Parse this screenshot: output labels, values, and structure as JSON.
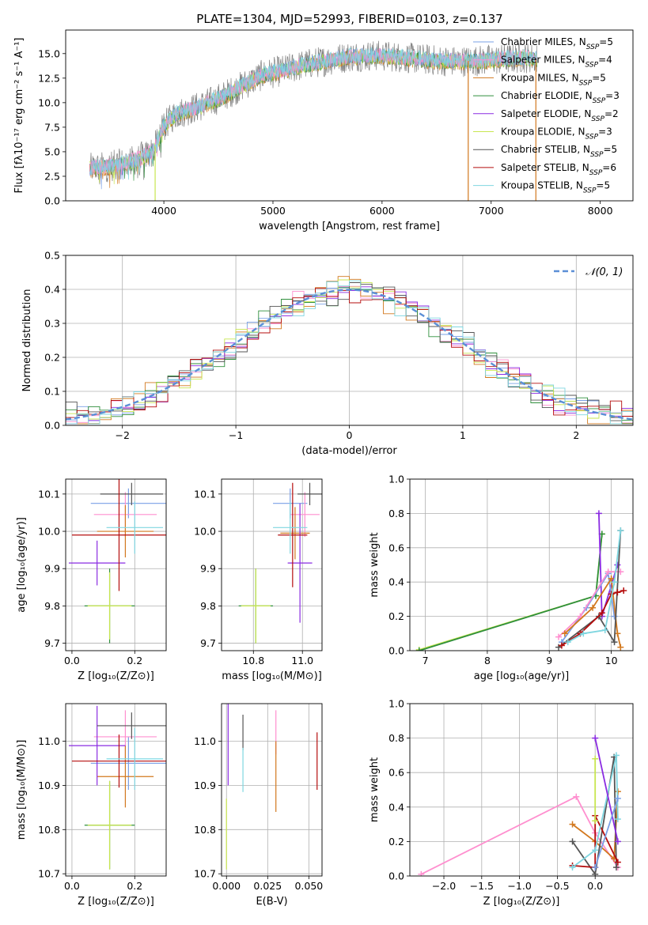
{
  "figure": {
    "title": "PLATE=1304, MJD=52993, FIBERID=0103, z=0.137"
  },
  "colors": {
    "chabrier_miles": "#7aa0e6",
    "salpeter_miles": "#ff8fcf",
    "kroupa_miles": "#d2781e",
    "chabrier_elodie": "#2f8f3c",
    "salpeter_elodie": "#8a2be2",
    "kroupa_elodie": "#c8e650",
    "chabrier_stelib": "#555555",
    "salpeter_stelib": "#b50d0d",
    "kroupa_stelib": "#7fd6e0",
    "gaussian": "#5b8fd6"
  },
  "chart_data": [
    {
      "id": "spectrum",
      "type": "line",
      "title": "PLATE=1304, MJD=52993, FIBERID=0103, z=0.137",
      "xlabel": "wavelength [Angstrom, rest frame]",
      "ylabel": "Flux [fλ10⁻¹⁷ erg cm⁻² s⁻¹ A⁻¹]",
      "xlim": [
        3100,
        8300
      ],
      "ylim": [
        0,
        17.4
      ],
      "xticks": [
        4000,
        5000,
        6000,
        7000,
        8000
      ],
      "xtick_labels": [
        "4000",
        "5000",
        "6000",
        "7000",
        "8000"
      ],
      "yticks": [
        0,
        2.5,
        5,
        7.5,
        10,
        12.5,
        15
      ],
      "ytick_labels": [
        "0.0",
        "2.5",
        "5.0",
        "7.5",
        "10.0",
        "12.5",
        "15.0"
      ],
      "legend_placement": "upper-right",
      "continuum": {
        "x": [
          3320,
          3500,
          3700,
          3900,
          4000,
          4100,
          4300,
          4500,
          4700,
          4900,
          5100,
          5300,
          5500,
          5700,
          5900,
          6100,
          6300,
          6500,
          6700,
          6900,
          7100,
          7300,
          7420
        ],
        "y": [
          3.3,
          3.5,
          4.0,
          5.0,
          7.6,
          8.8,
          9.5,
          10.4,
          11.6,
          12.8,
          13.3,
          13.9,
          14.3,
          14.7,
          14.8,
          14.7,
          14.5,
          14.3,
          14.2,
          14.3,
          14.4,
          14.6,
          14.5
        ]
      },
      "series": [
        {
          "name": "Chabrier MILES, N",
          "sub": "SSP",
          "suffix": "=5",
          "color_key": "chabrier_miles"
        },
        {
          "name": "Salpeter MILES, N",
          "sub": "SSP",
          "suffix": "=4",
          "color_key": "salpeter_miles"
        },
        {
          "name": "Kroupa MILES, N",
          "sub": "SSP",
          "suffix": "=5",
          "color_key": "kroupa_miles"
        },
        {
          "name": "Chabrier ELODIE, N",
          "sub": "SSP",
          "suffix": "=3",
          "color_key": "chabrier_elodie"
        },
        {
          "name": "Salpeter ELODIE, N",
          "sub": "SSP",
          "suffix": "=2",
          "color_key": "salpeter_elodie"
        },
        {
          "name": "Kroupa ELODIE, N",
          "sub": "SSP",
          "suffix": "=3",
          "color_key": "kroupa_elodie"
        },
        {
          "name": "Chabrier STELIB, N",
          "sub": "SSP",
          "suffix": "=5",
          "color_key": "chabrier_stelib"
        },
        {
          "name": "Salpeter STELIB, N",
          "sub": "SSP",
          "suffix": "=6",
          "color_key": "salpeter_stelib"
        },
        {
          "name": "Kroupa STELIB, N",
          "sub": "SSP",
          "suffix": "=5",
          "color_key": "kroupa_stelib"
        }
      ],
      "dropouts": [
        {
          "x": 3920,
          "y": 0,
          "color_key": "kroupa_elodie"
        },
        {
          "x": 6790,
          "y": 0,
          "color_key": "kroupa_miles"
        },
        {
          "x": 7410,
          "y": 0,
          "color_key": "kroupa_miles"
        }
      ]
    },
    {
      "id": "residuals",
      "type": "step",
      "xlabel": "(data-model)/error",
      "ylabel": "Normed distribution",
      "xlim": [
        -2.5,
        2.5
      ],
      "ylim": [
        0,
        0.5
      ],
      "xticks": [
        -2,
        -1,
        0,
        1,
        2
      ],
      "xtick_labels": [
        "−2",
        "−1",
        "0",
        "1",
        "2"
      ],
      "yticks": [
        0,
        0.1,
        0.2,
        0.3,
        0.4,
        0.5
      ],
      "ytick_labels": [
        "0.0",
        "0.1",
        "0.2",
        "0.3",
        "0.4",
        "0.5"
      ],
      "grid": true,
      "legend_placement": "upper-right",
      "legend_label": "𝒩(0, 1)",
      "bin_edges": [
        -2.5,
        -2.4,
        -2.3,
        -2.2,
        -2.1,
        -2.0,
        -1.9,
        -1.8,
        -1.7,
        -1.6,
        -1.5,
        -1.4,
        -1.3,
        -1.2,
        -1.1,
        -1.0,
        -0.9,
        -0.8,
        -0.7,
        -0.6,
        -0.5,
        -0.4,
        -0.3,
        -0.2,
        -0.1,
        0.0,
        0.1,
        0.2,
        0.3,
        0.4,
        0.5,
        0.6,
        0.7,
        0.8,
        0.9,
        1.0,
        1.1,
        1.2,
        1.3,
        1.4,
        1.5,
        1.6,
        1.7,
        1.8,
        1.9,
        2.0,
        2.1,
        2.2,
        2.3,
        2.4,
        2.5
      ],
      "gaussian_pdf": true,
      "hist_offsets": [
        0.018,
        -0.012,
        0.025,
        -0.02,
        0.01,
        -0.005,
        0.03,
        -0.025,
        0.015
      ]
    },
    {
      "id": "age_vs_z",
      "type": "errorbar",
      "xlabel": "Z [log₁₀(Z/Z⊙)]",
      "ylabel": "age  [log₁₀(age/yr)]",
      "xlim": [
        -0.02,
        0.3
      ],
      "ylim": [
        9.68,
        10.14
      ],
      "xticks": [
        0.0,
        0.2
      ],
      "xtick_labels": [
        "0.0",
        "0.2"
      ],
      "yticks": [
        9.7,
        9.8,
        9.9,
        10.0,
        10.1
      ],
      "ytick_labels": [
        "9.7",
        "9.8",
        "9.9",
        "10.0",
        "10.1"
      ],
      "grid": true,
      "points": [
        {
          "x": 0.18,
          "y": 10.075,
          "xerr": 0.12,
          "yerr": 0.04,
          "color_key": "chabrier_miles"
        },
        {
          "x": 0.17,
          "y": 10.045,
          "xerr": 0.1,
          "yerr": 0.06,
          "color_key": "salpeter_miles"
        },
        {
          "x": 0.17,
          "y": 10.0,
          "xerr": 0.09,
          "yerr": 0.07,
          "color_key": "kroupa_miles"
        },
        {
          "x": 0.12,
          "y": 9.8,
          "xerr": 0.08,
          "yerr": 0.1,
          "color_key": "chabrier_elodie"
        },
        {
          "x": 0.08,
          "y": 9.915,
          "xerr": 0.09,
          "yerr": 0.06,
          "color_key": "salpeter_elodie"
        },
        {
          "x": 0.12,
          "y": 9.8,
          "xerr": 0.07,
          "yerr": 0.09,
          "color_key": "kroupa_elodie"
        },
        {
          "x": 0.19,
          "y": 10.1,
          "xerr": 0.1,
          "yerr": 0.03,
          "color_key": "chabrier_stelib"
        },
        {
          "x": 0.15,
          "y": 9.99,
          "xerr": 0.15,
          "yerr": 0.15,
          "color_key": "salpeter_stelib"
        },
        {
          "x": 0.2,
          "y": 10.01,
          "xerr": 0.09,
          "yerr": 0.07,
          "color_key": "kroupa_stelib"
        }
      ]
    },
    {
      "id": "age_vs_mass",
      "type": "errorbar",
      "xlabel": "mass [log₁₀(M/M⊙)]",
      "ylabel": "",
      "xlim": [
        10.67,
        11.08
      ],
      "ylim": [
        9.68,
        10.14
      ],
      "xticks": [
        10.8,
        11.0
      ],
      "xtick_labels": [
        "10.8",
        "11.0"
      ],
      "yticks": [
        9.7,
        9.8,
        9.9,
        10.0,
        10.1
      ],
      "ytick_labels": [
        "9.7",
        "9.8",
        "9.9",
        "10.0",
        "10.1"
      ],
      "grid": true,
      "points": [
        {
          "x": 10.95,
          "y": 10.075,
          "xerr": 0.07,
          "yerr": 0.04,
          "color_key": "chabrier_miles"
        },
        {
          "x": 11.01,
          "y": 10.045,
          "xerr": 0.06,
          "yerr": 0.06,
          "color_key": "salpeter_miles"
        },
        {
          "x": 10.97,
          "y": 9.995,
          "xerr": 0.06,
          "yerr": 0.07,
          "color_key": "kroupa_miles"
        },
        {
          "x": 10.81,
          "y": 9.8,
          "xerr": 0.07,
          "yerr": 0.1,
          "color_key": "chabrier_elodie"
        },
        {
          "x": 10.99,
          "y": 9.915,
          "xerr": 0.05,
          "yerr": 0.16,
          "color_key": "salpeter_elodie"
        },
        {
          "x": 10.81,
          "y": 9.8,
          "xerr": 0.06,
          "yerr": 0.1,
          "color_key": "kroupa_elodie"
        },
        {
          "x": 11.03,
          "y": 10.1,
          "xerr": 0.05,
          "yerr": 0.03,
          "color_key": "chabrier_stelib"
        },
        {
          "x": 10.96,
          "y": 9.99,
          "xerr": 0.06,
          "yerr": 0.14,
          "color_key": "salpeter_stelib"
        },
        {
          "x": 10.95,
          "y": 10.01,
          "xerr": 0.07,
          "yerr": 0.07,
          "color_key": "kroupa_stelib"
        }
      ]
    },
    {
      "id": "mass_weight_vs_age",
      "type": "line",
      "xlabel": "age  [log₁₀(age/yr)]",
      "ylabel": "mass weight",
      "xlim": [
        6.75,
        10.35
      ],
      "ylim": [
        0,
        1.0
      ],
      "xticks": [
        7,
        8,
        9,
        10
      ],
      "xtick_labels": [
        "7",
        "8",
        "9",
        "10"
      ],
      "yticks": [
        0,
        0.2,
        0.4,
        0.6,
        0.8,
        1.0
      ],
      "ytick_labels": [
        "0.0",
        "0.2",
        "0.4",
        "0.6",
        "0.8",
        "1.0"
      ],
      "grid": true,
      "series": [
        {
          "color_key": "kroupa_elodie",
          "x": [
            6.9,
            9.75,
            9.85
          ],
          "y": [
            0.005,
            0.32,
            0.68
          ]
        },
        {
          "color_key": "chabrier_elodie",
          "x": [
            6.9,
            9.75,
            9.85
          ],
          "y": [
            0.0,
            0.32,
            0.68
          ]
        },
        {
          "color_key": "salpeter_elodie",
          "x": [
            9.8,
            9.85,
            10.1
          ],
          "y": [
            0.8,
            0.2,
            0.5
          ]
        },
        {
          "color_key": "chabrier_miles",
          "x": [
            9.2,
            9.6,
            9.95,
            10.05
          ],
          "y": [
            0.05,
            0.25,
            0.45,
            0.2
          ]
        },
        {
          "color_key": "salpeter_miles",
          "x": [
            9.15,
            9.5,
            9.95,
            10.15
          ],
          "y": [
            0.08,
            0.2,
            0.46,
            0.46
          ]
        },
        {
          "color_key": "kroupa_miles",
          "x": [
            9.25,
            9.7,
            10.0,
            10.1,
            10.15
          ],
          "y": [
            0.1,
            0.25,
            0.42,
            0.1,
            0.02
          ]
        },
        {
          "color_key": "chabrier_stelib",
          "x": [
            9.15,
            9.8,
            10.05,
            10.15
          ],
          "y": [
            0.02,
            0.2,
            0.05,
            0.7
          ]
        },
        {
          "color_key": "salpeter_stelib",
          "x": [
            9.2,
            9.5,
            9.85,
            10.0,
            10.1,
            10.2
          ],
          "y": [
            0.03,
            0.1,
            0.22,
            0.33,
            0.34,
            0.35
          ]
        },
        {
          "color_key": "kroupa_stelib",
          "x": [
            9.3,
            9.55,
            9.9,
            10.05,
            10.15
          ],
          "y": [
            0.05,
            0.1,
            0.12,
            0.4,
            0.7
          ]
        }
      ]
    },
    {
      "id": "mass_vs_z",
      "type": "errorbar",
      "xlabel": "Z [log₁₀(Z/Z⊙)]",
      "ylabel": "mass [log₁₀(M/M⊙)]",
      "xlim": [
        -0.02,
        0.3
      ],
      "ylim": [
        10.695,
        11.085
      ],
      "xticks": [
        0.0,
        0.2
      ],
      "xtick_labels": [
        "0.0",
        "0.2"
      ],
      "yticks": [
        10.7,
        10.8,
        10.9,
        11.0
      ],
      "ytick_labels": [
        "10.7",
        "10.8",
        "10.9",
        "11.0"
      ],
      "grid": true,
      "points": [
        {
          "x": 0.18,
          "y": 10.95,
          "xerr": 0.12,
          "yerr": 0.06,
          "color_key": "chabrier_miles"
        },
        {
          "x": 0.17,
          "y": 11.01,
          "xerr": 0.1,
          "yerr": 0.06,
          "color_key": "salpeter_miles"
        },
        {
          "x": 0.17,
          "y": 10.92,
          "xerr": 0.09,
          "yerr": 0.07,
          "color_key": "kroupa_miles"
        },
        {
          "x": 0.12,
          "y": 10.81,
          "xerr": 0.08,
          "yerr": 0.1,
          "color_key": "chabrier_elodie"
        },
        {
          "x": 0.08,
          "y": 10.99,
          "xerr": 0.09,
          "yerr": 0.09,
          "color_key": "salpeter_elodie"
        },
        {
          "x": 0.12,
          "y": 10.81,
          "xerr": 0.07,
          "yerr": 0.1,
          "color_key": "kroupa_elodie"
        },
        {
          "x": 0.19,
          "y": 11.035,
          "xerr": 0.11,
          "yerr": 0.03,
          "color_key": "chabrier_stelib"
        },
        {
          "x": 0.15,
          "y": 10.955,
          "xerr": 0.15,
          "yerr": 0.06,
          "color_key": "salpeter_stelib"
        },
        {
          "x": 0.2,
          "y": 10.96,
          "xerr": 0.09,
          "yerr": 0.07,
          "color_key": "kroupa_stelib"
        }
      ]
    },
    {
      "id": "mass_vs_ebv",
      "type": "errorbar",
      "xlabel": "E(B-V)",
      "ylabel": "",
      "xlim": [
        -0.003,
        0.058
      ],
      "ylim": [
        10.695,
        11.085
      ],
      "xticks": [
        0.0,
        0.025,
        0.05
      ],
      "xtick_labels": [
        "0.000",
        "0.025",
        "0.050"
      ],
      "yticks": [
        10.7,
        10.8,
        10.9,
        11.0
      ],
      "ytick_labels": [
        "10.7",
        "10.8",
        "10.9",
        "11.0"
      ],
      "grid": true,
      "points": [
        {
          "x": 0.001,
          "y": 11.0,
          "xerr": 0,
          "yerr": 0.1,
          "color_key": "salpeter_elodie"
        },
        {
          "x": 0.0,
          "y": 10.79,
          "xerr": 0,
          "yerr": 0.08,
          "color_key": "kroupa_elodie"
        },
        {
          "x": 0.01,
          "y": 11.02,
          "xerr": 0,
          "yerr": 0.04,
          "color_key": "chabrier_stelib"
        },
        {
          "x": 0.01,
          "y": 10.935,
          "xerr": 0,
          "yerr": 0.05,
          "color_key": "kroupa_stelib"
        },
        {
          "x": 0.03,
          "y": 11.02,
          "xerr": 0,
          "yerr": 0.05,
          "color_key": "salpeter_miles"
        },
        {
          "x": 0.03,
          "y": 10.92,
          "xerr": 0,
          "yerr": 0.08,
          "color_key": "kroupa_miles"
        },
        {
          "x": 0.055,
          "y": 10.955,
          "xerr": 0,
          "yerr": 0.065,
          "color_key": "salpeter_stelib"
        }
      ]
    },
    {
      "id": "mass_weight_vs_z",
      "type": "line",
      "xlabel": "Z [log₁₀(Z/Z⊙)]",
      "ylabel": "mass weight",
      "xlim": [
        -2.45,
        0.5
      ],
      "ylim": [
        0,
        1.0
      ],
      "xticks": [
        -2.0,
        -1.5,
        -1.0,
        -0.5,
        0.0
      ],
      "xtick_labels": [
        "−2.0",
        "−1.5",
        "−1.0",
        "−0.5",
        "0.0"
      ],
      "yticks": [
        0,
        0.2,
        0.4,
        0.6,
        0.8,
        1.0
      ],
      "ytick_labels": [
        "0.0",
        "0.2",
        "0.4",
        "0.6",
        "0.8",
        "1.0"
      ],
      "grid": true,
      "series": [
        {
          "color_key": "salpeter_miles",
          "x": [
            -2.3,
            -0.25,
            0.0,
            0.3
          ],
          "y": [
            0.01,
            0.46,
            0.25,
            0.05
          ]
        },
        {
          "color_key": "kroupa_miles",
          "x": [
            -0.3,
            0.0,
            0.25,
            0.3
          ],
          "y": [
            0.3,
            0.2,
            0.1,
            0.49
          ]
        },
        {
          "color_key": "chabrier_stelib",
          "x": [
            -0.3,
            0.0,
            0.25,
            0.28
          ],
          "y": [
            0.2,
            0.01,
            0.69,
            0.05
          ]
        },
        {
          "color_key": "salpeter_stelib",
          "x": [
            -0.3,
            0.0,
            0.0,
            0.3
          ],
          "y": [
            0.06,
            0.05,
            0.35,
            0.08
          ]
        },
        {
          "color_key": "kroupa_stelib",
          "x": [
            -0.3,
            0.0,
            0.28,
            0.3
          ],
          "y": [
            0.05,
            0.15,
            0.7,
            0.33
          ]
        },
        {
          "color_key": "salpeter_elodie",
          "x": [
            0.0,
            0.3
          ],
          "y": [
            0.8,
            0.2
          ]
        },
        {
          "color_key": "kroupa_elodie",
          "x": [
            0.0,
            0.0
          ],
          "y": [
            0.68,
            0.32
          ]
        },
        {
          "color_key": "chabrier_miles",
          "x": [
            0.0,
            0.3
          ],
          "y": [
            0.05,
            0.45
          ]
        }
      ]
    }
  ]
}
